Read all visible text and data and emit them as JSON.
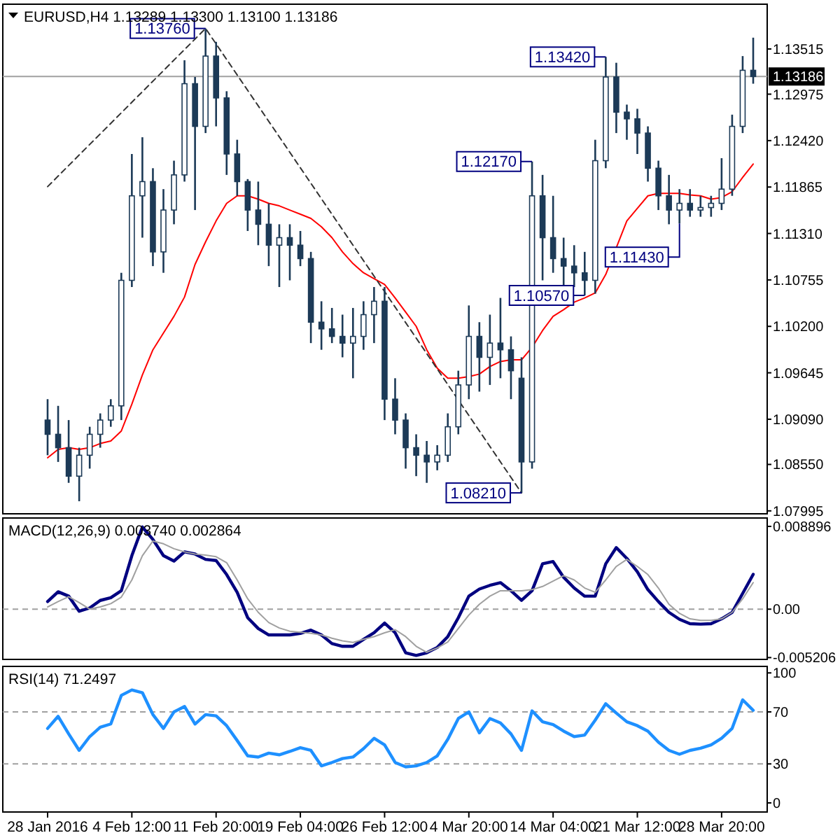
{
  "chart_data": [
    {
      "type": "candlestick",
      "title": "EURUSD,H4  1.13289 1.13300 1.13100 1.13186",
      "color": "#1c3a57",
      "tick_labels": "y",
      "categories": [
        null,
        null,
        null,
        null,
        null,
        null,
        null,
        null,
        null,
        null,
        null,
        null,
        null,
        null,
        null,
        null,
        null,
        null,
        null,
        null,
        null,
        null,
        null,
        null,
        null,
        null,
        null,
        null,
        null,
        null,
        null,
        null,
        null,
        null,
        null,
        null,
        null,
        null,
        null,
        null,
        null,
        null,
        null,
        null,
        null,
        null,
        null,
        null,
        null,
        null,
        null,
        null,
        null,
        null,
        null,
        null,
        null,
        null,
        null,
        null,
        null,
        null,
        null,
        null,
        null,
        null,
        null,
        null
      ],
      "ohlc": [
        [
          1.0908,
          1.0933,
          1.0866,
          1.0891
        ],
        [
          1.0891,
          1.0925,
          1.0858,
          1.0875
        ],
        [
          1.0875,
          1.0908,
          1.0833,
          1.0841
        ],
        [
          1.0841,
          1.0875,
          1.0811,
          1.0866
        ],
        [
          1.0866,
          1.09,
          1.085,
          1.0891
        ],
        [
          1.0891,
          1.0916,
          1.0875,
          1.0908
        ],
        [
          1.0908,
          1.0933,
          1.09,
          1.0925
        ],
        [
          1.0925,
          1.1084,
          1.0908,
          1.1075
        ],
        [
          1.1075,
          1.1226,
          1.1067,
          1.1176
        ],
        [
          1.1176,
          1.1246,
          1.1126,
          1.1193
        ],
        [
          1.1193,
          1.1209,
          1.1092,
          1.1109
        ],
        [
          1.1109,
          1.1184,
          1.1084,
          1.1159
        ],
        [
          1.1159,
          1.1218,
          1.1142,
          1.1201
        ],
        [
          1.1201,
          1.1338,
          1.1193,
          1.131
        ],
        [
          1.131,
          1.1318,
          1.1159,
          1.1259
        ],
        [
          1.1259,
          1.1376,
          1.1251,
          1.1343
        ],
        [
          1.1343,
          1.136,
          1.1259,
          1.1293
        ],
        [
          1.1293,
          1.1301,
          1.1201,
          1.1226
        ],
        [
          1.1226,
          1.1243,
          1.1176,
          1.1193
        ],
        [
          1.1193,
          1.1196,
          1.1134,
          1.1159
        ],
        [
          1.1159,
          1.1193,
          1.1117,
          1.1142
        ],
        [
          1.1142,
          1.1167,
          1.1092,
          1.1117
        ],
        [
          1.1117,
          1.1142,
          1.1067,
          1.1126
        ],
        [
          1.1126,
          1.1142,
          1.1075,
          1.1117
        ],
        [
          1.1117,
          1.1134,
          1.1092,
          1.1101
        ],
        [
          1.1101,
          1.1109,
          1.1,
          1.1025
        ],
        [
          1.1025,
          1.105,
          1.0992,
          1.1017
        ],
        [
          1.1017,
          1.1042,
          1.1,
          1.1008
        ],
        [
          1.1008,
          1.1034,
          1.0983,
          1.1
        ],
        [
          1.1,
          1.1042,
          1.0958,
          1.1008
        ],
        [
          1.1008,
          1.105,
          1.0992,
          1.1034
        ],
        [
          1.1034,
          1.1067,
          1.1,
          1.105
        ],
        [
          1.105,
          1.1067,
          1.0908,
          1.0933
        ],
        [
          1.0933,
          1.0958,
          1.0891,
          1.0908
        ],
        [
          1.0908,
          1.0916,
          1.085,
          1.0875
        ],
        [
          1.0875,
          1.0891,
          1.0841,
          1.0866
        ],
        [
          1.0866,
          1.0883,
          1.0833,
          1.0858
        ],
        [
          1.0858,
          1.0878,
          1.0848,
          1.0866
        ],
        [
          1.0866,
          1.0916,
          1.0858,
          1.09
        ],
        [
          1.09,
          1.0967,
          1.0891,
          1.095
        ],
        [
          1.095,
          1.1045,
          1.0933,
          1.1008
        ],
        [
          1.1008,
          1.1025,
          1.0942,
          1.0983
        ],
        [
          1.0983,
          1.1034,
          1.095,
          1.1
        ],
        [
          1.1,
          1.1054,
          1.0958,
          1.0992
        ],
        [
          1.0992,
          1.1008,
          1.0933,
          1.0967
        ],
        [
          1.0958,
          1.0983,
          1.0821,
          1.0858
        ],
        [
          1.0858,
          1.1217,
          1.085,
          1.1176
        ],
        [
          1.1176,
          1.1201,
          1.1075,
          1.1126
        ],
        [
          1.1126,
          1.1176,
          1.1084,
          1.1101
        ],
        [
          1.1101,
          1.1126,
          1.1067,
          1.1092
        ],
        [
          1.1092,
          1.1117,
          1.1067,
          1.1084
        ],
        [
          1.1084,
          1.1109,
          1.1057,
          1.1075
        ],
        [
          1.1075,
          1.1243,
          1.1059,
          1.1218
        ],
        [
          1.1218,
          1.1342,
          1.1209,
          1.1318
        ],
        [
          1.1318,
          1.1335,
          1.1251,
          1.1276
        ],
        [
          1.1276,
          1.1285,
          1.1243,
          1.1268
        ],
        [
          1.1268,
          1.128,
          1.1226,
          1.1251
        ],
        [
          1.1251,
          1.1259,
          1.1193,
          1.1209
        ],
        [
          1.1209,
          1.1218,
          1.1159,
          1.1176
        ],
        [
          1.1176,
          1.1201,
          1.1142,
          1.1159
        ],
        [
          1.1159,
          1.1184,
          1.1143,
          1.1167
        ],
        [
          1.1167,
          1.1184,
          1.1151,
          1.1159
        ],
        [
          1.1159,
          1.1176,
          1.1151,
          1.1162
        ],
        [
          1.1162,
          1.1176,
          1.1151,
          1.1167
        ],
        [
          1.1167,
          1.1221,
          1.1159,
          1.1184
        ],
        [
          1.1184,
          1.1273,
          1.1176,
          1.1259
        ],
        [
          1.1259,
          1.1343,
          1.1251,
          1.1326
        ],
        [
          1.1326,
          1.1365,
          1.131,
          1.13186
        ]
      ],
      "series": [
        {
          "type": "line",
          "color": "#ff0000",
          "values": [
            1.0863,
            1.0873,
            1.0875,
            1.0873,
            1.0875,
            1.088,
            1.0883,
            1.0895,
            1.0927,
            1.0962,
            1.0992,
            1.1012,
            1.1032,
            1.1055,
            1.1094,
            1.1121,
            1.1146,
            1.1167,
            1.1176,
            1.1176,
            1.1172,
            1.1167,
            1.1164,
            1.1159,
            1.1154,
            1.1149,
            1.1139,
            1.1126,
            1.1109,
            1.1095,
            1.1084,
            1.1077,
            1.107,
            1.1054,
            1.1037,
            1.102,
            1.0992,
            1.097,
            1.0958,
            1.0958,
            1.096,
            1.0963,
            1.0972,
            1.0978,
            1.098,
            1.098,
            1.0995,
            1.1015,
            1.1032,
            1.104,
            1.1049,
            1.1054,
            1.106,
            1.1082,
            1.1114,
            1.1146,
            1.1161,
            1.1176,
            1.1179,
            1.1179,
            1.1179,
            1.1177,
            1.1176,
            1.1172,
            1.1174,
            1.1181,
            1.1198,
            1.1214
          ]
        },
        {
          "type": "line",
          "color": "#333333",
          "line_style": "dashed",
          "values": [
            1.1187,
            null,
            null,
            null,
            null,
            null,
            null,
            null,
            null,
            null,
            null,
            null,
            null,
            null,
            null,
            1.1376,
            null,
            null,
            null,
            null,
            null,
            null,
            null,
            null,
            null,
            null,
            null,
            null,
            null,
            null,
            null,
            null,
            null,
            null,
            null,
            null,
            null,
            null,
            null,
            null,
            null,
            null,
            null,
            null,
            null,
            1.0821,
            null,
            null,
            null,
            null,
            null,
            null,
            null,
            null,
            null,
            null,
            null,
            null,
            null,
            null,
            null,
            null,
            null,
            null,
            null,
            null,
            null,
            null
          ]
        }
      ],
      "ylim": [
        1.0796,
        1.1405
      ],
      "yticks": [
        1.07995,
        {
          "value": 1.0855,
          "label": "1.08550"
        },
        {
          "value": 1.0909,
          "label": "1.09090"
        },
        1.09645,
        {
          "value": 1.102,
          "label": "1.10200"
        },
        1.10755,
        {
          "value": 1.1131,
          "label": "1.11310"
        },
        1.11865,
        {
          "value": 1.1242,
          "label": "1.12420"
        },
        1.12975,
        1.13515
      ],
      "ref_lines": [
        {
          "axis": "y",
          "value": 1.13186,
          "label": "1.13186",
          "color": "#a0a0a0"
        }
      ],
      "annotations": [
        "1.13760",
        "1.08210",
        "1.12170",
        "1.10570",
        "1.13420",
        "1.11430"
      ]
    },
    {
      "type": "line",
      "title": "MACD(12,26,9) 0.003740 0.002864",
      "tick_labels": "y",
      "categories": [
        null,
        null,
        null,
        null,
        null,
        null,
        null,
        null,
        null,
        null,
        null,
        null,
        null,
        null,
        null,
        null,
        null,
        null,
        null,
        null,
        null,
        null,
        null,
        null,
        null,
        null,
        null,
        null,
        null,
        null,
        null,
        null,
        null,
        null,
        null,
        null,
        null,
        null,
        null,
        null,
        null,
        null,
        null,
        null,
        null,
        null,
        null,
        null,
        null,
        null,
        null,
        null,
        null,
        null,
        null,
        null,
        null,
        null,
        null,
        null,
        null,
        null,
        null,
        null,
        null,
        null,
        null,
        null
      ],
      "series": [
        {
          "color": "#000080",
          "values": [
            0.00082,
            0.00187,
            0.0014,
            -0.00022,
            0.00013,
            0.00094,
            0.00123,
            0.00198,
            0.00575,
            0.00883,
            0.00749,
            0.00575,
            0.00517,
            0.00616,
            0.00593,
            0.00535,
            0.00523,
            0.00372,
            0.00181,
            -0.00092,
            -0.00208,
            -0.00277,
            -0.00277,
            -0.00277,
            -0.0026,
            -0.00225,
            -0.00277,
            -0.0037,
            -0.00399,
            -0.00399,
            -0.00324,
            -0.00254,
            -0.0015,
            -0.00254,
            -0.00469,
            -0.00498,
            -0.00469,
            -0.00411,
            -0.00295,
            -0.00092,
            0.0014,
            0.00216,
            0.00256,
            0.00285,
            0.00198,
            0.00094,
            0.00198,
            0.00488,
            0.00512,
            0.00343,
            0.00227,
            0.0014,
            0.0014,
            0.00488,
            0.00662,
            0.00546,
            0.00401,
            0.0021,
            0.00082,
            -0.00034,
            -0.00109,
            -0.00156,
            -0.00161,
            -0.00156,
            -0.00104,
            -0.00034,
            0.00169,
            0.00374
          ]
        },
        {
          "color": "#a0a0a0",
          "values": [
            0.00024,
            0.00082,
            0.00135,
            0.00071,
            1e-05,
            0.00024,
            0.00059,
            0.00129,
            0.00314,
            0.00575,
            0.00732,
            0.00703,
            0.0065,
            0.00616,
            0.00593,
            0.00581,
            0.00564,
            0.005,
            0.00314,
            0.00111,
            -0.00034,
            -0.00144,
            -0.00202,
            -0.00237,
            -0.00249,
            -0.0026,
            -0.00277,
            -0.00312,
            -0.00341,
            -0.00358,
            -0.00324,
            -0.00295,
            -0.00254,
            -0.0022,
            -0.00295,
            -0.00399,
            -0.00463,
            -0.00417,
            -0.00353,
            -0.00208,
            -0.00063,
            0.00053,
            0.0014,
            0.00198,
            0.00198,
            0.00198,
            0.0021,
            0.00244,
            0.00302,
            0.0036,
            0.00314,
            0.00227,
            0.00181,
            0.00314,
            0.00459,
            0.00535,
            0.00459,
            0.00372,
            0.00227,
            0.00053,
            -0.00045,
            -0.00104,
            -0.00121,
            -0.00121,
            -0.00104,
            -0.00034,
            0.00111,
            0.00286
          ]
        }
      ],
      "ylim": [
        -0.0054,
        0.0098
      ],
      "yticks": [
        0.008896,
        {
          "value": 0,
          "label": "0.00"
        },
        -0.005206
      ],
      "ref_lines": [
        {
          "axis": "y",
          "value": 0,
          "color": "#a0a0a0",
          "line_style": "dashed"
        }
      ]
    },
    {
      "type": "line",
      "title": "RSI(14) 71.2497",
      "categories": [
        "28 Jan 2016",
        null,
        null,
        null,
        null,
        null,
        null,
        null,
        "4 Feb 12:00",
        null,
        null,
        null,
        null,
        null,
        null,
        null,
        "11 Feb 20:00",
        null,
        null,
        null,
        null,
        null,
        null,
        null,
        "19 Feb 04:00",
        null,
        null,
        null,
        null,
        null,
        null,
        null,
        "26 Feb 12:00",
        null,
        null,
        null,
        null,
        null,
        null,
        null,
        "4 Mar 20:00",
        null,
        null,
        null,
        null,
        null,
        null,
        null,
        "14 Mar 04:00",
        null,
        null,
        null,
        null,
        null,
        null,
        null,
        "21 Mar 12:00",
        null,
        null,
        null,
        null,
        null,
        null,
        null,
        "28 Mar 20:00",
        null,
        null,
        null
      ],
      "series": [
        {
          "color": "#1e90ff",
          "values": [
            57.3,
            66.6,
            53.1,
            40.4,
            51,
            58.2,
            60.7,
            82.7,
            86.9,
            84.8,
            67.9,
            57.3,
            70,
            74.2,
            60.7,
            67.9,
            67,
            59.4,
            48,
            36.2,
            35.3,
            38.3,
            37,
            39.6,
            42.5,
            40.4,
            28.5,
            31.1,
            34.1,
            35.3,
            41.7,
            49.7,
            44.6,
            31.1,
            27.7,
            28.5,
            31.1,
            36.2,
            48.9,
            64.9,
            70,
            53.9,
            64.9,
            61.5,
            53.1,
            40.4,
            70.8,
            62.4,
            60.3,
            55.2,
            51,
            52.2,
            63.7,
            76.3,
            69.1,
            62.4,
            59.4,
            55.2,
            46.7,
            40.4,
            37.4,
            40.4,
            42.1,
            44.6,
            49.7,
            57.3,
            79.3,
            71.2
          ]
        }
      ],
      "ylim": [
        -7,
        105
      ],
      "yticks": [
        0,
        30,
        70,
        100
      ],
      "ref_lines": [
        {
          "axis": "y",
          "value": 70,
          "color": "#a0a0a0",
          "line_style": "dashed"
        },
        {
          "axis": "y",
          "value": 30,
          "color": "#a0a0a0",
          "line_style": "dashed"
        }
      ]
    }
  ]
}
